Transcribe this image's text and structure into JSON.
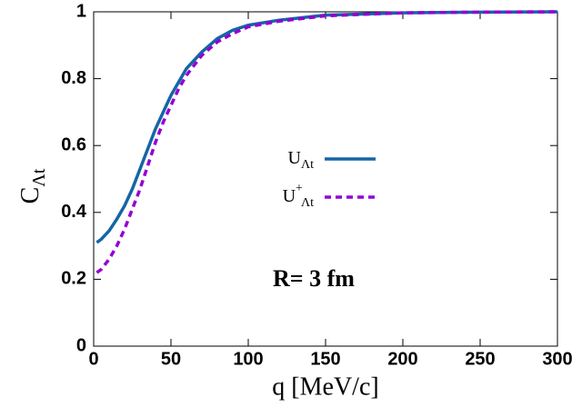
{
  "chart_data": {
    "type": "line",
    "x_label": "q [MeV/c]",
    "y_label": "C",
    "y_label_sub": "Λt",
    "annotation": "R= 3 fm",
    "xlim": [
      0,
      300
    ],
    "xticks": [
      0,
      50,
      100,
      150,
      200,
      250,
      300
    ],
    "ylim": [
      0,
      1
    ],
    "yticks": [
      0,
      0.2,
      0.4,
      0.6,
      0.8,
      1
    ],
    "legend": "center",
    "series": [
      {
        "name": "U",
        "name_sub": "Λt",
        "color": "#1565a6",
        "dash": false,
        "x": [
          2,
          5,
          10,
          15,
          20,
          25,
          30,
          35,
          40,
          45,
          50,
          55,
          60,
          70,
          80,
          90,
          100,
          120,
          150,
          200,
          250,
          300
        ],
        "values": [
          0.31,
          0.32,
          0.345,
          0.38,
          0.42,
          0.47,
          0.53,
          0.59,
          0.65,
          0.7,
          0.75,
          0.79,
          0.83,
          0.88,
          0.92,
          0.945,
          0.96,
          0.975,
          0.99,
          0.997,
          0.999,
          1.0
        ]
      },
      {
        "name": "U",
        "name_sup": "+",
        "name_sub": "Λt",
        "color": "#9400d3",
        "dash": true,
        "x": [
          2,
          5,
          10,
          15,
          20,
          25,
          30,
          35,
          40,
          45,
          50,
          55,
          60,
          70,
          80,
          90,
          100,
          120,
          150,
          200,
          250,
          300
        ],
        "values": [
          0.22,
          0.23,
          0.26,
          0.3,
          0.35,
          0.41,
          0.47,
          0.54,
          0.61,
          0.67,
          0.72,
          0.77,
          0.81,
          0.87,
          0.91,
          0.935,
          0.955,
          0.972,
          0.988,
          0.997,
          0.999,
          1.0
        ]
      }
    ]
  }
}
